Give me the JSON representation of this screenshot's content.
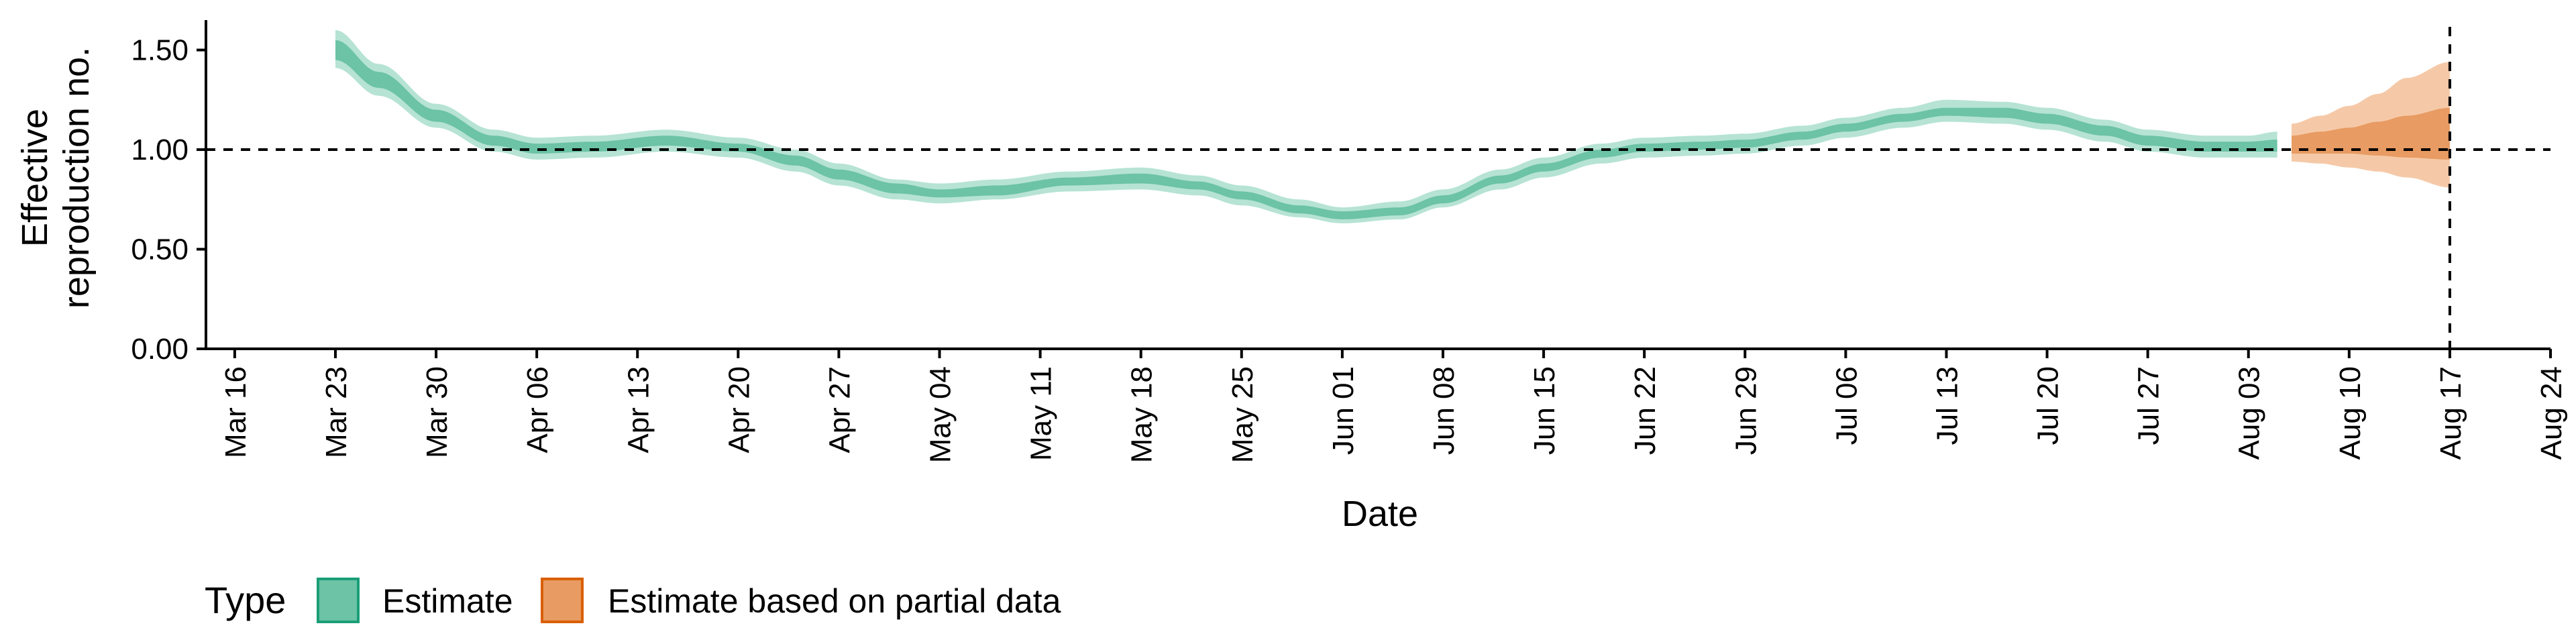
{
  "chart_data": {
    "type": "area",
    "title": "",
    "xlabel": "Date",
    "ylabel_lines": [
      "Effective",
      "reproduction no."
    ],
    "ylim": [
      0,
      1.65
    ],
    "xlim": [
      "2020-03-14",
      "2020-08-24"
    ],
    "y_ticks": [
      {
        "value": 0.0,
        "label": "0.00"
      },
      {
        "value": 0.5,
        "label": "0.50"
      },
      {
        "value": 1.0,
        "label": "1.00"
      },
      {
        "value": 1.5,
        "label": "1.50"
      }
    ],
    "x_ticks": [
      {
        "date": "2020-03-16",
        "label": "Mar 16"
      },
      {
        "date": "2020-03-23",
        "label": "Mar 23"
      },
      {
        "date": "2020-03-30",
        "label": "Mar 30"
      },
      {
        "date": "2020-04-06",
        "label": "Apr 06"
      },
      {
        "date": "2020-04-13",
        "label": "Apr 13"
      },
      {
        "date": "2020-04-20",
        "label": "Apr 20"
      },
      {
        "date": "2020-04-27",
        "label": "Apr 27"
      },
      {
        "date": "2020-05-04",
        "label": "May 04"
      },
      {
        "date": "2020-05-11",
        "label": "May 11"
      },
      {
        "date": "2020-05-18",
        "label": "May 18"
      },
      {
        "date": "2020-05-25",
        "label": "May 25"
      },
      {
        "date": "2020-06-01",
        "label": "Jun 01"
      },
      {
        "date": "2020-06-08",
        "label": "Jun 08"
      },
      {
        "date": "2020-06-15",
        "label": "Jun 15"
      },
      {
        "date": "2020-06-22",
        "label": "Jun 22"
      },
      {
        "date": "2020-06-29",
        "label": "Jun 29"
      },
      {
        "date": "2020-07-06",
        "label": "Jul 06"
      },
      {
        "date": "2020-07-13",
        "label": "Jul 13"
      },
      {
        "date": "2020-07-20",
        "label": "Jul 20"
      },
      {
        "date": "2020-07-27",
        "label": "Jul 27"
      },
      {
        "date": "2020-08-03",
        "label": "Aug 03"
      },
      {
        "date": "2020-08-10",
        "label": "Aug 10"
      },
      {
        "date": "2020-08-17",
        "label": "Aug 17"
      },
      {
        "date": "2020-08-24",
        "label": "Aug 24"
      }
    ],
    "reference_lines": {
      "horizontal_y": 1.0,
      "vertical_date": "2020-08-17",
      "style": "dashed"
    },
    "legend": {
      "title": "Type",
      "position": "bottom-left",
      "items": [
        {
          "label": "Estimate",
          "fill": "#6cc3a6",
          "border": "#1b9e77"
        },
        {
          "label": "Estimate based on partial data",
          "fill": "#e89b62",
          "border": "#d95f02"
        }
      ]
    },
    "series": [
      {
        "name": "Estimate",
        "colors": {
          "outer": "#b6e3d4",
          "inner": "#6cc3a6"
        },
        "points": [
          {
            "date": "2020-03-23",
            "lo90": 1.41,
            "lo50": 1.45,
            "hi50": 1.55,
            "hi90": 1.6
          },
          {
            "date": "2020-03-26",
            "lo90": 1.27,
            "lo50": 1.31,
            "hi50": 1.39,
            "hi90": 1.43
          },
          {
            "date": "2020-03-30",
            "lo90": 1.11,
            "lo50": 1.14,
            "hi50": 1.2,
            "hi90": 1.23
          },
          {
            "date": "2020-04-03",
            "lo90": 0.99,
            "lo50": 1.02,
            "hi50": 1.07,
            "hi90": 1.1
          },
          {
            "date": "2020-04-06",
            "lo90": 0.95,
            "lo50": 0.98,
            "hi50": 1.03,
            "hi90": 1.06
          },
          {
            "date": "2020-04-10",
            "lo90": 0.96,
            "lo50": 0.99,
            "hi50": 1.04,
            "hi90": 1.07
          },
          {
            "date": "2020-04-15",
            "lo90": 0.99,
            "lo50": 1.02,
            "hi50": 1.07,
            "hi90": 1.1
          },
          {
            "date": "2020-04-20",
            "lo90": 0.96,
            "lo50": 0.99,
            "hi50": 1.03,
            "hi90": 1.06
          },
          {
            "date": "2020-04-24",
            "lo90": 0.89,
            "lo50": 0.92,
            "hi50": 0.97,
            "hi90": 1.0
          },
          {
            "date": "2020-04-27",
            "lo90": 0.82,
            "lo50": 0.85,
            "hi50": 0.9,
            "hi90": 0.93
          },
          {
            "date": "2020-05-01",
            "lo90": 0.75,
            "lo50": 0.78,
            "hi50": 0.83,
            "hi90": 0.85
          },
          {
            "date": "2020-05-04",
            "lo90": 0.73,
            "lo50": 0.76,
            "hi50": 0.8,
            "hi90": 0.83
          },
          {
            "date": "2020-05-08",
            "lo90": 0.75,
            "lo50": 0.77,
            "hi50": 0.82,
            "hi90": 0.85
          },
          {
            "date": "2020-05-13",
            "lo90": 0.79,
            "lo50": 0.82,
            "hi50": 0.86,
            "hi90": 0.89
          },
          {
            "date": "2020-05-18",
            "lo90": 0.8,
            "lo50": 0.83,
            "hi50": 0.88,
            "hi90": 0.91
          },
          {
            "date": "2020-05-22",
            "lo90": 0.77,
            "lo50": 0.8,
            "hi50": 0.84,
            "hi90": 0.87
          },
          {
            "date": "2020-05-25",
            "lo90": 0.72,
            "lo50": 0.75,
            "hi50": 0.79,
            "hi90": 0.82
          },
          {
            "date": "2020-05-29",
            "lo90": 0.66,
            "lo50": 0.68,
            "hi50": 0.72,
            "hi90": 0.75
          },
          {
            "date": "2020-06-01",
            "lo90": 0.63,
            "lo50": 0.65,
            "hi50": 0.69,
            "hi90": 0.71
          },
          {
            "date": "2020-06-05",
            "lo90": 0.65,
            "lo50": 0.67,
            "hi50": 0.71,
            "hi90": 0.74
          },
          {
            "date": "2020-06-08",
            "lo90": 0.71,
            "lo50": 0.73,
            "hi50": 0.77,
            "hi90": 0.8
          },
          {
            "date": "2020-06-12",
            "lo90": 0.8,
            "lo50": 0.83,
            "hi50": 0.87,
            "hi90": 0.9
          },
          {
            "date": "2020-06-15",
            "lo90": 0.86,
            "lo50": 0.89,
            "hi50": 0.93,
            "hi90": 0.96
          },
          {
            "date": "2020-06-19",
            "lo90": 0.93,
            "lo50": 0.96,
            "hi50": 1.0,
            "hi90": 1.03
          },
          {
            "date": "2020-06-22",
            "lo90": 0.96,
            "lo50": 0.99,
            "hi50": 1.03,
            "hi90": 1.06
          },
          {
            "date": "2020-06-26",
            "lo90": 0.97,
            "lo50": 1.0,
            "hi50": 1.04,
            "hi90": 1.07
          },
          {
            "date": "2020-06-29",
            "lo90": 0.98,
            "lo50": 1.01,
            "hi50": 1.05,
            "hi90": 1.08
          },
          {
            "date": "2020-07-03",
            "lo90": 1.02,
            "lo50": 1.05,
            "hi50": 1.09,
            "hi90": 1.12
          },
          {
            "date": "2020-07-06",
            "lo90": 1.06,
            "lo50": 1.09,
            "hi50": 1.13,
            "hi90": 1.16
          },
          {
            "date": "2020-07-10",
            "lo90": 1.11,
            "lo50": 1.14,
            "hi50": 1.18,
            "hi90": 1.21
          },
          {
            "date": "2020-07-13",
            "lo90": 1.14,
            "lo50": 1.17,
            "hi50": 1.21,
            "hi90": 1.25
          },
          {
            "date": "2020-07-17",
            "lo90": 1.13,
            "lo50": 1.16,
            "hi50": 1.21,
            "hi90": 1.24
          },
          {
            "date": "2020-07-20",
            "lo90": 1.1,
            "lo50": 1.13,
            "hi50": 1.18,
            "hi90": 1.21
          },
          {
            "date": "2020-07-24",
            "lo90": 1.04,
            "lo50": 1.07,
            "hi50": 1.12,
            "hi90": 1.15
          },
          {
            "date": "2020-07-27",
            "lo90": 0.99,
            "lo50": 1.02,
            "hi50": 1.07,
            "hi90": 1.1
          },
          {
            "date": "2020-07-31",
            "lo90": 0.96,
            "lo50": 0.99,
            "hi50": 1.04,
            "hi90": 1.07
          },
          {
            "date": "2020-08-03",
            "lo90": 0.96,
            "lo50": 0.99,
            "hi50": 1.04,
            "hi90": 1.07
          },
          {
            "date": "2020-08-05",
            "lo90": 0.96,
            "lo50": 0.99,
            "hi50": 1.05,
            "hi90": 1.09
          }
        ]
      },
      {
        "name": "Estimate based on partial data",
        "colors": {
          "outer": "#f5c9a8",
          "inner": "#e89b62"
        },
        "points": [
          {
            "date": "2020-08-06",
            "lo90": 0.94,
            "lo50": 0.98,
            "hi50": 1.07,
            "hi90": 1.13
          },
          {
            "date": "2020-08-08",
            "lo90": 0.93,
            "lo50": 0.98,
            "hi50": 1.09,
            "hi90": 1.17
          },
          {
            "date": "2020-08-10",
            "lo90": 0.91,
            "lo50": 0.98,
            "hi50": 1.11,
            "hi90": 1.22
          },
          {
            "date": "2020-08-12",
            "lo90": 0.89,
            "lo50": 0.97,
            "hi50": 1.14,
            "hi90": 1.28
          },
          {
            "date": "2020-08-14",
            "lo90": 0.86,
            "lo50": 0.96,
            "hi50": 1.17,
            "hi90": 1.36
          },
          {
            "date": "2020-08-17",
            "lo90": 0.81,
            "lo50": 0.95,
            "hi50": 1.21,
            "hi90": 1.44
          }
        ]
      }
    ]
  }
}
